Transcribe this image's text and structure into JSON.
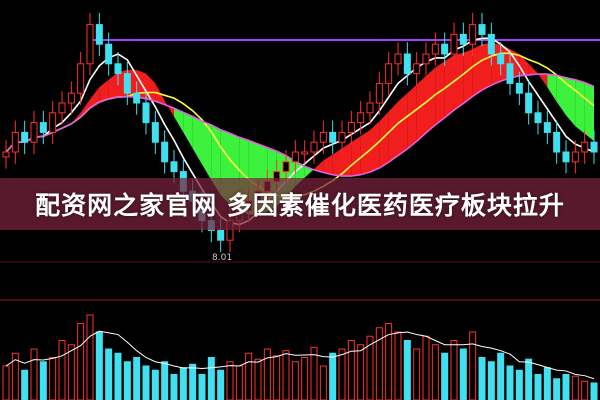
{
  "title": "配资网之家官网 多因素催化医药医疗板块拉升",
  "chart_data": {
    "type": "candlestick",
    "annotations": {
      "low_label": "8.01"
    },
    "colors": {
      "up": "#ff3030",
      "down": "#40e0f0",
      "ribbon_up": "#ff2020",
      "ribbon_down": "#40ff40",
      "ma_short": "#ffffff",
      "ma_mid": "#ffff40",
      "ma_long": "#e060e0",
      "volume_up": "#ff3030",
      "volume_down": "#40e0f0"
    },
    "close": [
      9.0,
      9.2,
      9.1,
      9.3,
      9.2,
      9.4,
      9.5,
      9.6,
      9.9,
      10.3,
      10.1,
      9.9,
      9.8,
      9.6,
      9.5,
      9.3,
      9.1,
      8.9,
      8.8,
      8.6,
      8.5,
      8.3,
      8.2,
      8.1,
      8.3,
      8.4,
      8.5,
      8.6,
      8.7,
      8.8,
      8.9,
      9.0,
      9.0,
      9.1,
      9.2,
      9.1,
      9.2,
      9.3,
      9.4,
      9.5,
      9.7,
      9.9,
      10.0,
      9.8,
      9.9,
      10.0,
      10.1,
      10.0,
      10.2,
      10.1,
      10.3,
      10.2,
      10.0,
      9.9,
      9.7,
      9.6,
      9.4,
      9.3,
      9.2,
      9.0,
      8.9,
      9.0,
      9.1,
      9.0
    ],
    "volume": [
      40,
      55,
      35,
      60,
      45,
      50,
      70,
      65,
      90,
      100,
      80,
      60,
      55,
      45,
      50,
      40,
      35,
      45,
      30,
      38,
      42,
      30,
      50,
      35,
      45,
      40,
      55,
      48,
      60,
      52,
      58,
      45,
      50,
      62,
      40,
      55,
      60,
      70,
      65,
      75,
      85,
      90,
      80,
      70,
      60,
      75,
      65,
      55,
      70,
      60,
      80,
      50,
      45,
      55,
      40,
      35,
      48,
      30,
      38,
      25,
      30,
      28,
      22,
      20
    ]
  }
}
